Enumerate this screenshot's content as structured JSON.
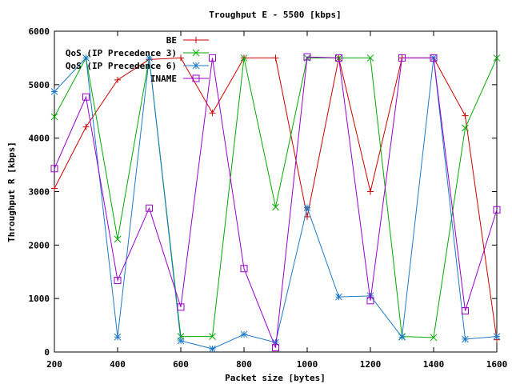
{
  "chart_data": {
    "type": "line",
    "title": "Troughput E - 5500 [kbps]",
    "xlabel": "Packet size [bytes]",
    "ylabel": "Throughput R [kbps]",
    "xlim": [
      200,
      1600
    ],
    "ylim": [
      0,
      6000
    ],
    "x_ticks": [
      "200",
      "400",
      "600",
      "800",
      "1000",
      "1200",
      "1400",
      "1600"
    ],
    "y_ticks": [
      "0",
      "1000",
      "2000",
      "3000",
      "4000",
      "5000",
      "6000"
    ],
    "grid": false,
    "legend_position": "top-left",
    "x": [
      200,
      300,
      400,
      500,
      600,
      700,
      800,
      900,
      1000,
      1100,
      1200,
      1300,
      1400,
      1500,
      1600
    ],
    "series": [
      {
        "name": "BE",
        "color": "#cc0000",
        "marker": "plus",
        "values": [
          3060,
          4210,
          5090,
          5470,
          5500,
          4470,
          5500,
          5500,
          2530,
          5500,
          3000,
          5500,
          5500,
          4420,
          230
        ]
      },
      {
        "name": "QoS (IP Precedence 3)",
        "color": "#00aa00",
        "marker": "cross",
        "values": [
          4400,
          5500,
          2110,
          5500,
          290,
          290,
          5500,
          2710,
          5500,
          5500,
          5500,
          290,
          270,
          4190,
          5500
        ]
      },
      {
        "name": "QoS (IP Precedence 6)",
        "color": "#1e7ac8",
        "marker": "star",
        "values": [
          4870,
          5500,
          280,
          5500,
          210,
          60,
          330,
          180,
          2700,
          1030,
          1050,
          280,
          5500,
          240,
          290
        ]
      },
      {
        "name": "INAME",
        "color": "#9900cc",
        "marker": "box",
        "values": [
          3430,
          4770,
          1340,
          2690,
          840,
          5500,
          1560,
          80,
          5520,
          5500,
          960,
          5500,
          5500,
          770,
          2660
        ]
      }
    ]
  }
}
